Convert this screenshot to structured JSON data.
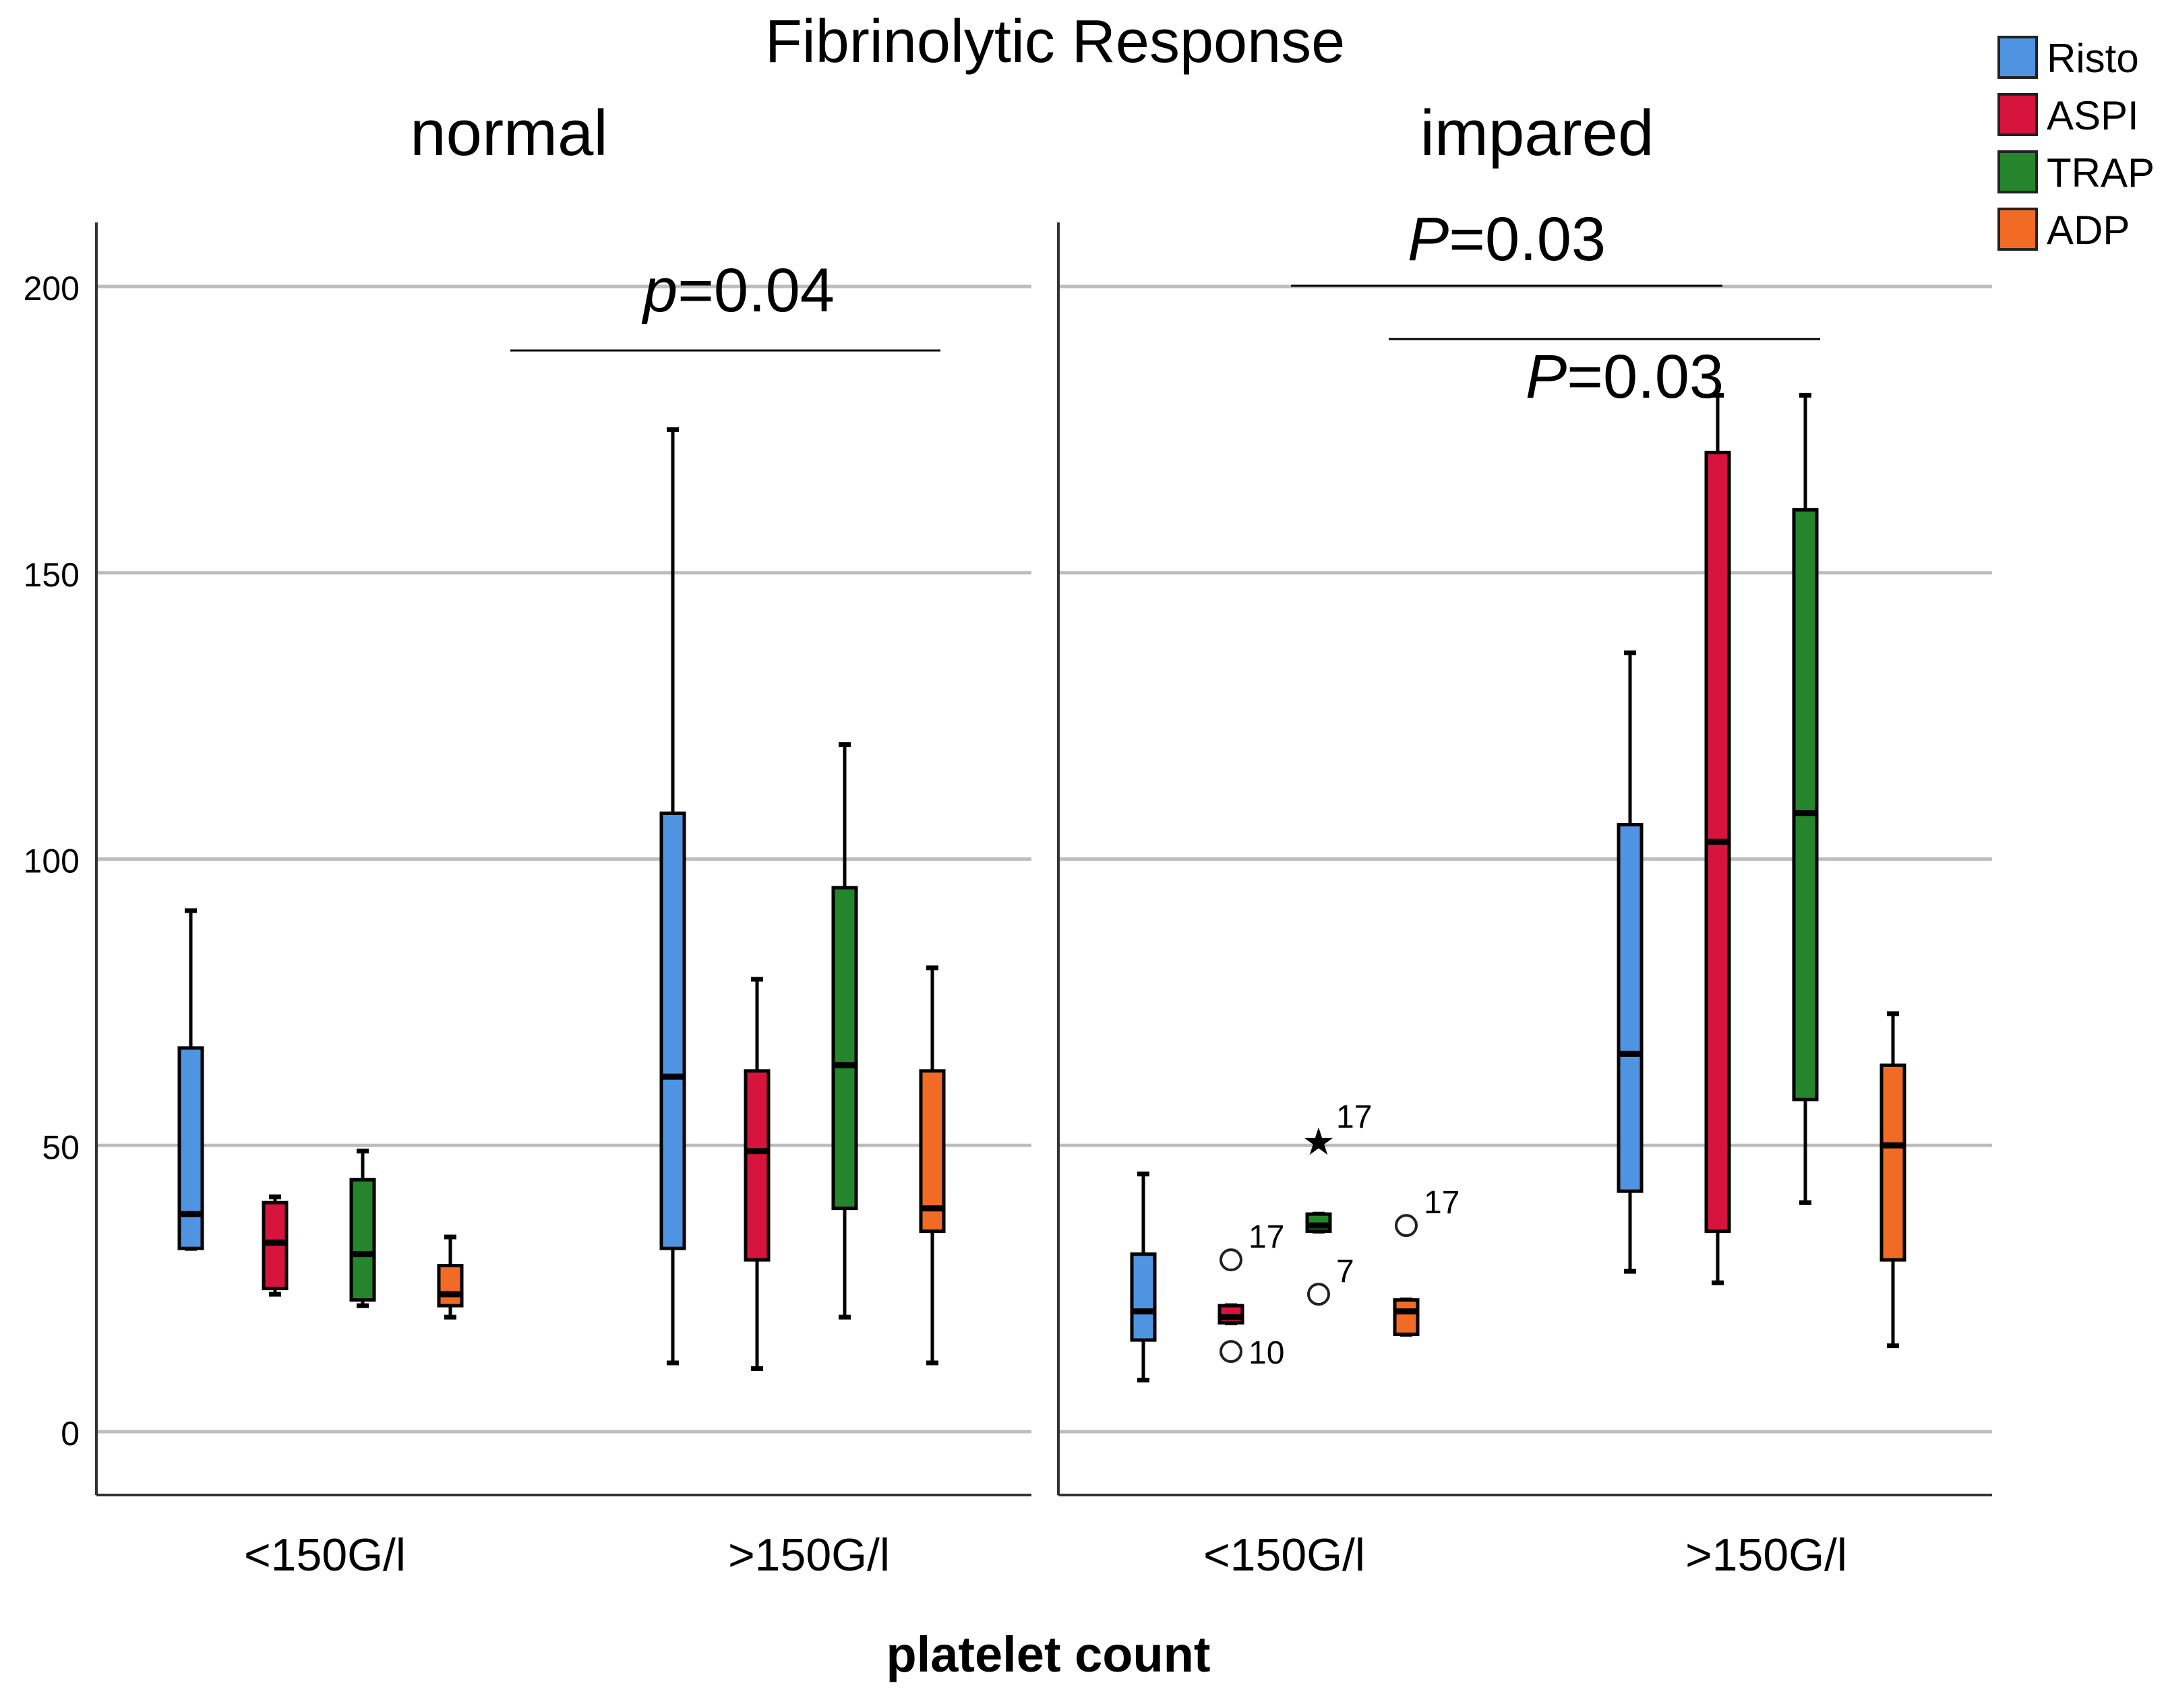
{
  "chart_data": {
    "type": "boxplot",
    "title": "Fibrinolytic Response",
    "xlabel": "platelet count",
    "ylabel": "",
    "ylim": [
      -10,
      211
    ],
    "yticks": [
      0,
      50,
      100,
      150,
      200
    ],
    "grid": true,
    "legend_position": "top-right",
    "legend": [
      {
        "name": "Risto",
        "color": "#4F94E1"
      },
      {
        "name": "ASPI",
        "color": "#D7143D"
      },
      {
        "name": "TRAP",
        "color": "#24852C"
      },
      {
        "name": "ADP",
        "color": "#F16B25"
      }
    ],
    "panels": [
      {
        "title": "normal",
        "categories": [
          "<150G/l",
          ">150G/l"
        ],
        "annotations": [
          {
            "label_prefix": "p",
            "label_value": "=0.04",
            "y": 189,
            "group": ">150G/l"
          }
        ],
        "groups": [
          {
            "category": "<150G/l",
            "boxes": [
              {
                "series": "Risto",
                "min": 32,
                "q1": 32,
                "median": 38,
                "q3": 67,
                "max": 91
              },
              {
                "series": "ASPI",
                "min": 24,
                "q1": 25,
                "median": 33,
                "q3": 40,
                "max": 41
              },
              {
                "series": "TRAP",
                "min": 22,
                "q1": 23,
                "median": 31,
                "q3": 44,
                "max": 49
              },
              {
                "series": "ADP",
                "min": 20,
                "q1": 22,
                "median": 24,
                "q3": 29,
                "max": 34
              }
            ]
          },
          {
            "category": ">150G/l",
            "boxes": [
              {
                "series": "Risto",
                "min": 12,
                "q1": 32,
                "median": 62,
                "q3": 108,
                "max": 175
              },
              {
                "series": "ASPI",
                "min": 11,
                "q1": 30,
                "median": 49,
                "q3": 63,
                "max": 79
              },
              {
                "series": "TRAP",
                "min": 20,
                "q1": 39,
                "median": 64,
                "q3": 95,
                "max": 120
              },
              {
                "series": "ADP",
                "min": 12,
                "q1": 35,
                "median": 39,
                "q3": 63,
                "max": 81
              }
            ]
          }
        ]
      },
      {
        "title": "impared",
        "categories": [
          "<150G/l",
          ">150G/l"
        ],
        "annotations": [
          {
            "label_prefix": "P",
            "label_value": "=0.03",
            "y": 200,
            "group": "<150G/l"
          },
          {
            "label_prefix": "P",
            "label_value": "=0.03",
            "y": 191,
            "group": ">150G/l"
          }
        ],
        "groups": [
          {
            "category": "<150G/l",
            "boxes": [
              {
                "series": "Risto",
                "min": 9,
                "q1": 16,
                "median": 21,
                "q3": 31,
                "max": 45,
                "outliers": []
              },
              {
                "series": "ASPI",
                "min": 19,
                "q1": 19,
                "median": 20,
                "q3": 22,
                "max": 22,
                "outliers": [
                  {
                    "value": 30,
                    "label": "17"
                  },
                  {
                    "value": 14,
                    "label": "10"
                  }
                ]
              },
              {
                "series": "TRAP",
                "min": 35,
                "q1": 35,
                "median": 36,
                "q3": 38,
                "max": 38,
                "outliers": [
                  {
                    "value": 51,
                    "label": "17",
                    "marker": "star"
                  },
                  {
                    "value": 24,
                    "label": "7"
                  }
                ]
              },
              {
                "series": "ADP",
                "min": 17,
                "q1": 17,
                "median": 21,
                "q3": 23,
                "max": 23,
                "outliers": [
                  {
                    "value": 36,
                    "label": "17"
                  }
                ]
              }
            ]
          },
          {
            "category": ">150G/l",
            "boxes": [
              {
                "series": "Risto",
                "min": 28,
                "q1": 42,
                "median": 66,
                "q3": 106,
                "max": 136
              },
              {
                "series": "ASPI",
                "min": 26,
                "q1": 35,
                "median": 103,
                "q3": 171,
                "max": 181
              },
              {
                "series": "TRAP",
                "min": 40,
                "q1": 58,
                "median": 108,
                "q3": 161,
                "max": 181
              },
              {
                "series": "ADP",
                "min": 15,
                "q1": 30,
                "median": 50,
                "q3": 64,
                "max": 73
              }
            ]
          }
        ]
      }
    ]
  }
}
